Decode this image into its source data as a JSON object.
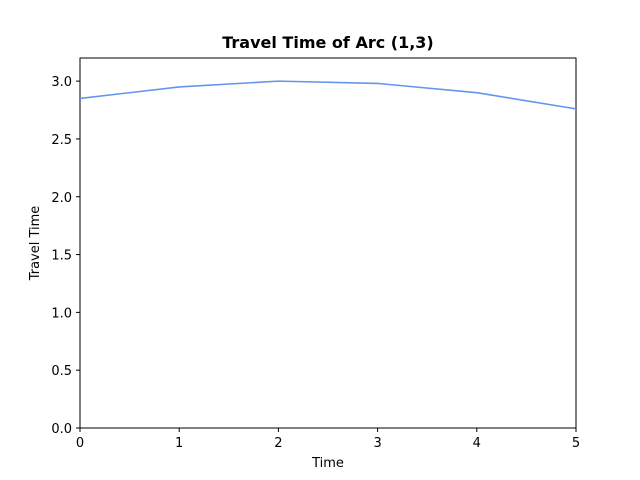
{
  "chart_data": {
    "type": "line",
    "title": "Travel Time of Arc (1,3)",
    "xlabel": "Time",
    "ylabel": "Travel Time",
    "xlim": [
      0,
      5
    ],
    "ylim": [
      0.0,
      3.2
    ],
    "x_ticks": [
      "0",
      "1",
      "2",
      "3",
      "4",
      "5"
    ],
    "y_ticks": [
      "0.0",
      "0.5",
      "1.0",
      "1.5",
      "2.0",
      "2.5",
      "3.0"
    ],
    "grid": false,
    "legend": "none",
    "series": [
      {
        "color": "#6495ED",
        "x": [
          0,
          1,
          2,
          3,
          4,
          5
        ],
        "y": [
          2.85,
          2.95,
          3.0,
          2.98,
          2.9,
          2.76
        ]
      }
    ]
  }
}
